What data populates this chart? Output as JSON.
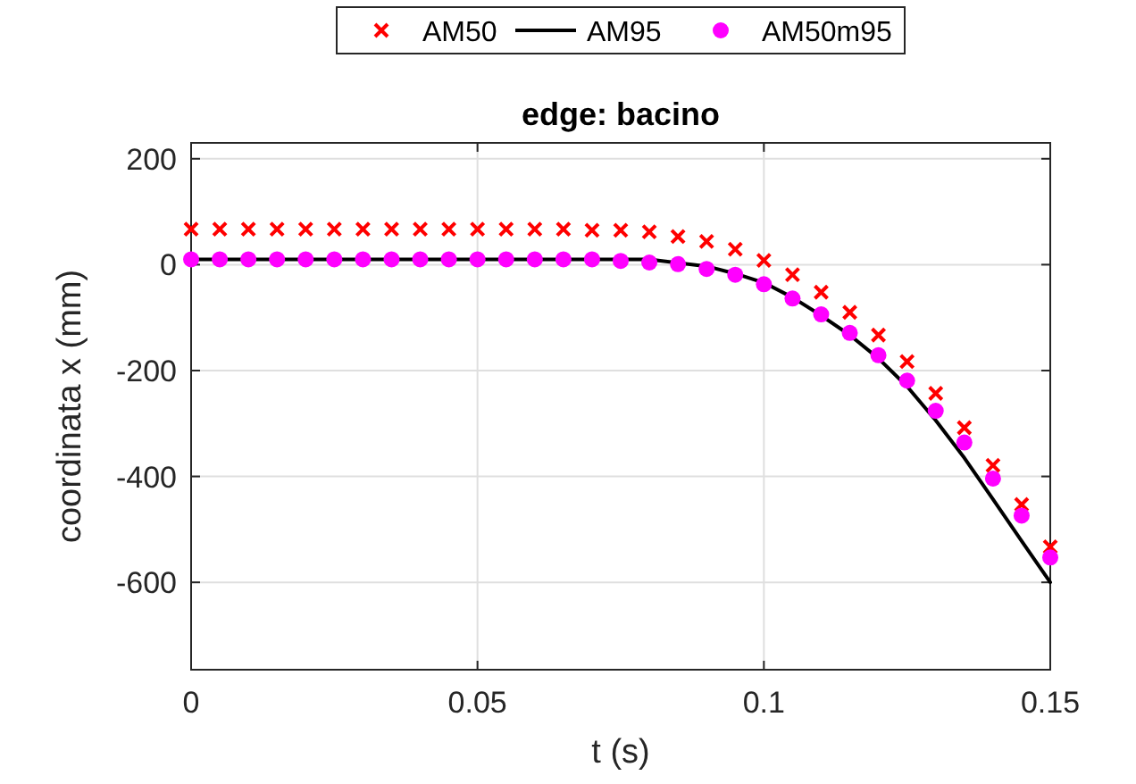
{
  "chart_data": {
    "type": "scatter",
    "title": "edge: bacino",
    "xlabel": "t (s)",
    "ylabel": "coordinata x (mm)",
    "xlim": [
      0,
      0.15
    ],
    "xticks": [
      0,
      0.05,
      0.1,
      0.15
    ],
    "ylim": [
      -765,
      230
    ],
    "yticks": [
      -600,
      -400,
      -200,
      0,
      200
    ],
    "grid": true,
    "legend": "top",
    "x": [
      0,
      0.005,
      0.01,
      0.015,
      0.02,
      0.025,
      0.03,
      0.035,
      0.04,
      0.045,
      0.05,
      0.055,
      0.06,
      0.065,
      0.07,
      0.075,
      0.08,
      0.085,
      0.09,
      0.095,
      0.1,
      0.105,
      0.11,
      0.115,
      0.12,
      0.125,
      0.13,
      0.135,
      0.14,
      0.145,
      0.15
    ],
    "series": [
      {
        "name": "AM50",
        "marker": "cross",
        "color": "#ff0000",
        "values": [
          67,
          67,
          67,
          67,
          67,
          67,
          67,
          67,
          67,
          67,
          67,
          67,
          67,
          67,
          65,
          65,
          62,
          53,
          44,
          29,
          8,
          -19,
          -52,
          -90,
          -133,
          -183,
          -243,
          -308,
          -379,
          -453,
          -533
        ]
      },
      {
        "name": "AM95",
        "type": "line",
        "marker": "none",
        "color": "#000000",
        "x": [
          0,
          0.08,
          0.09,
          0.095,
          0.1,
          0.105,
          0.11,
          0.115,
          0.12,
          0.125,
          0.13,
          0.135,
          0.14,
          0.145,
          0.15
        ],
        "values": [
          10,
          10,
          -3,
          -17,
          -34,
          -62,
          -96,
          -133,
          -177,
          -230,
          -294,
          -365,
          -443,
          -522,
          -600
        ]
      },
      {
        "name": "AM50m95",
        "marker": "circle",
        "color": "#ff00ff",
        "values": [
          10,
          10,
          10,
          10,
          10,
          10,
          10,
          10,
          10,
          10,
          10,
          10,
          10,
          10,
          10,
          7,
          4,
          1,
          -8,
          -19,
          -37,
          -64,
          -94,
          -129,
          -171,
          -219,
          -276,
          -336,
          -404,
          -474,
          -553
        ]
      }
    ]
  }
}
